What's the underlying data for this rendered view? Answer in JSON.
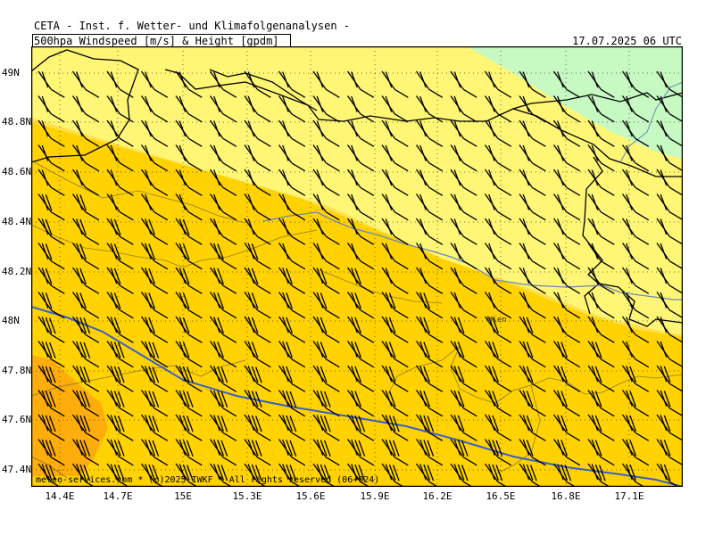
{
  "header": {
    "institute": "CETA - Inst. f. Wetter- und Klimafolgenanalysen -",
    "product": "500hpa Windspeed [m/s] & Height [gpdm]",
    "datetime": "17.07.2025 06 UTC"
  },
  "footer": {
    "copyright": "meteo-services.com * (c)2025 IWKF * All rights reserved (06+024)"
  },
  "axes": {
    "x_labels": [
      "14.4E",
      "14.7E",
      "15E",
      "15.3E",
      "15.6E",
      "15.9E",
      "16.2E",
      "16.5E",
      "16.8E",
      "17.1E"
    ],
    "y_labels": [
      "49N",
      "48.8N",
      "48.6N",
      "48.4N",
      "48.2N",
      "48N",
      "47.8N",
      "47.6N",
      "47.4N"
    ]
  },
  "map": {
    "city_label": "Wien",
    "colors": {
      "light_green": "#c6fac2",
      "pale_yellow": "#fff675",
      "yellow": "#ffe04a",
      "gold": "#ffd200",
      "orange": "#ffad0a",
      "height_contour": "#3a5fc8",
      "rivers": "#6b86b8",
      "borders": "#000000"
    },
    "wind_barbs": "northwesterly, strongest in the southwest"
  }
}
